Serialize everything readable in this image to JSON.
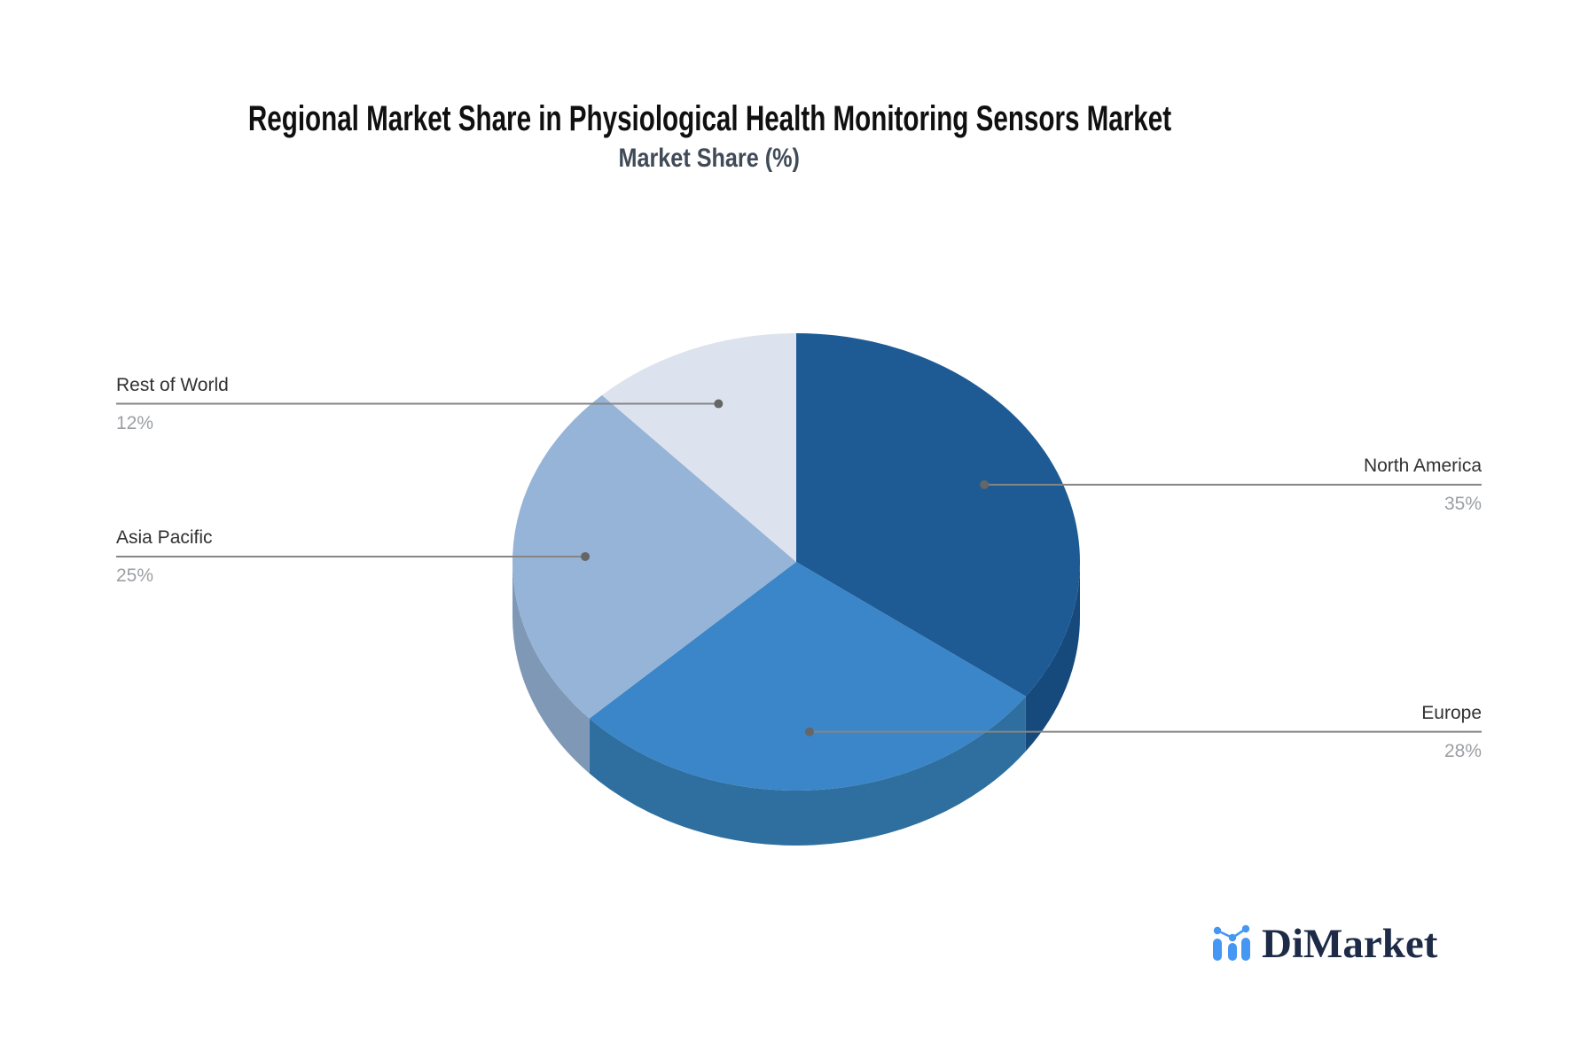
{
  "header": {
    "title": "Regional Market Share in Physiological Health Monitoring Sensors Market",
    "subtitle": "Market Share (%)"
  },
  "logo": {
    "text": "DiMarket",
    "icon": "bar-line-chart-icon",
    "icon_color": "#4597f3",
    "text_color": "#1d2b47"
  },
  "style": {
    "leader_line_color": "#858585",
    "leader_dot_color": "#666666",
    "label_text_color": "#313131",
    "percent_text_color": "#9b9fa4",
    "background": "#ffffff"
  },
  "chart_data": {
    "type": "pie",
    "title": "Regional Market Share in Physiological Health Monitoring Sensors Market",
    "subtitle": "Market Share (%)",
    "unit": "%",
    "effect": "3d-depth",
    "start_angle_deg": 0,
    "clockwise": true,
    "legend_position": "callout-labels",
    "slices": [
      {
        "label": "North America",
        "value": 35,
        "pct": "35%",
        "color": "#1e5b95",
        "depth_color": "#174a7c",
        "callout_side": "right"
      },
      {
        "label": "Europe",
        "value": 28,
        "pct": "28%",
        "color": "#3a86c8",
        "depth_color": "#2e6f9f",
        "callout_side": "right"
      },
      {
        "label": "Asia Pacific",
        "value": 25,
        "pct": "25%",
        "color": "#96b4d7",
        "depth_color": "#7e98b6",
        "callout_side": "left"
      },
      {
        "label": "Rest of World",
        "value": 12,
        "pct": "12%",
        "color": "#dde3ee",
        "depth_color": "#c3cede",
        "callout_side": "left"
      }
    ]
  }
}
